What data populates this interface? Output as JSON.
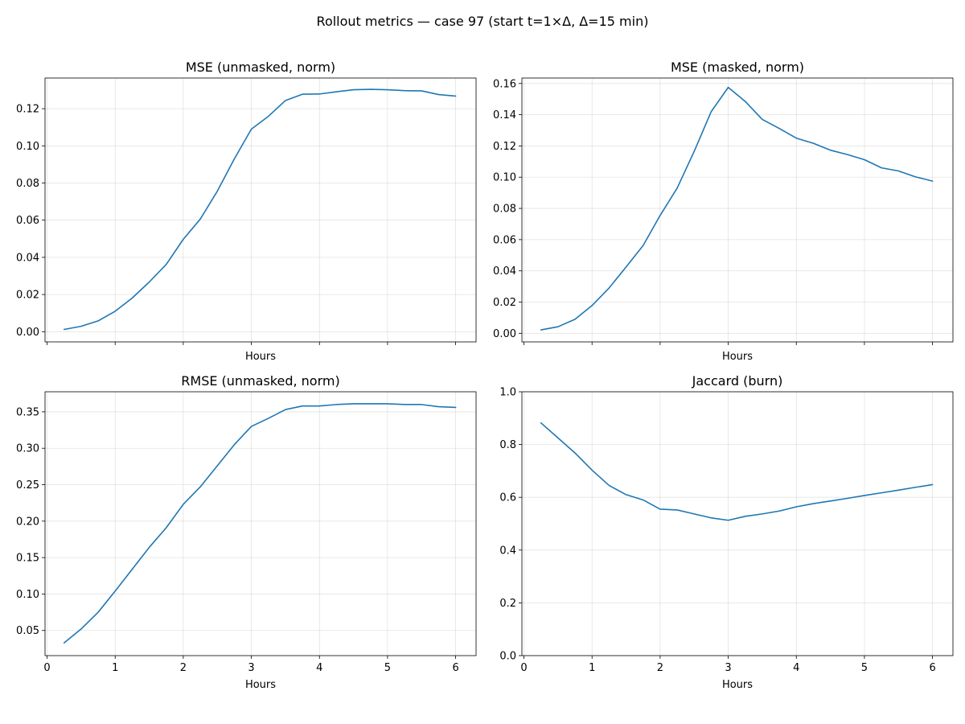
{
  "figure": {
    "suptitle": "Rollout metrics — case 97 (start t=1×Δ, Δ=15 min)"
  },
  "colors": {
    "series": "#1f77b4",
    "grid": "#b0b0b0"
  },
  "chart_data": [
    {
      "type": "line",
      "title": "MSE (unmasked, norm)",
      "xlabel": "Hours",
      "ylabel": "",
      "grid": true,
      "show_x_ticklabels": false,
      "xlim": [
        -0.03,
        6.3
      ],
      "ylim": [
        -0.0055,
        0.1365
      ],
      "xticks": [
        0,
        1,
        2,
        3,
        4,
        5,
        6
      ],
      "yticks": [
        0.0,
        0.02,
        0.04,
        0.06,
        0.08,
        0.1,
        0.12
      ],
      "ytick_labels": [
        "0.00",
        "0.02",
        "0.04",
        "0.06",
        "0.08",
        "0.10",
        "0.12"
      ],
      "x": [
        0.25,
        0.5,
        0.75,
        1.0,
        1.25,
        1.5,
        1.75,
        2.0,
        2.25,
        2.5,
        2.75,
        3.0,
        3.25,
        3.5,
        3.75,
        4.0,
        4.25,
        4.5,
        4.75,
        5.0,
        5.25,
        5.5,
        5.75,
        6.0
      ],
      "y": [
        0.0012,
        0.0029,
        0.0058,
        0.011,
        0.0181,
        0.0267,
        0.0362,
        0.0497,
        0.0606,
        0.0756,
        0.093,
        0.109,
        0.1159,
        0.1244,
        0.1278,
        0.1279,
        0.1291,
        0.1302,
        0.1304,
        0.1302,
        0.1297,
        0.1296,
        0.1276,
        0.1268
      ]
    },
    {
      "type": "line",
      "title": "MSE (masked, norm)",
      "xlabel": "Hours",
      "ylabel": "",
      "grid": true,
      "show_x_ticklabels": false,
      "xlim": [
        -0.03,
        6.3
      ],
      "ylim": [
        -0.0055,
        0.1635
      ],
      "xticks": [
        0,
        1,
        2,
        3,
        4,
        5,
        6
      ],
      "yticks": [
        0.0,
        0.02,
        0.04,
        0.06,
        0.08,
        0.1,
        0.12,
        0.14,
        0.16
      ],
      "ytick_labels": [
        "0.00",
        "0.02",
        "0.04",
        "0.06",
        "0.08",
        "0.10",
        "0.12",
        "0.14",
        "0.16"
      ],
      "x": [
        0.25,
        0.5,
        0.75,
        1.0,
        1.25,
        1.5,
        1.75,
        2.0,
        2.25,
        2.5,
        2.75,
        3.0,
        3.25,
        3.5,
        3.75,
        4.0,
        4.25,
        4.5,
        4.75,
        5.0,
        5.25,
        5.5,
        5.75,
        6.0
      ],
      "y": [
        0.0022,
        0.0042,
        0.009,
        0.0178,
        0.029,
        0.0425,
        0.0562,
        0.0755,
        0.093,
        0.1165,
        0.142,
        0.1575,
        0.1485,
        0.137,
        0.1312,
        0.125,
        0.1217,
        0.1173,
        0.1145,
        0.1112,
        0.106,
        0.104,
        0.1002,
        0.0975
      ]
    },
    {
      "type": "line",
      "title": "RMSE (unmasked, norm)",
      "xlabel": "Hours",
      "ylabel": "",
      "grid": true,
      "show_x_ticklabels": true,
      "xlim": [
        -0.03,
        6.3
      ],
      "ylim": [
        0.0155,
        0.3775
      ],
      "xticks": [
        0,
        1,
        2,
        3,
        4,
        5,
        6
      ],
      "xtick_labels": [
        "0",
        "1",
        "2",
        "3",
        "4",
        "5",
        "6"
      ],
      "yticks": [
        0.05,
        0.1,
        0.15,
        0.2,
        0.25,
        0.3,
        0.35
      ],
      "ytick_labels": [
        "0.05",
        "0.10",
        "0.15",
        "0.20",
        "0.25",
        "0.30",
        "0.35"
      ],
      "x": [
        0.25,
        0.5,
        0.75,
        1.0,
        1.25,
        1.5,
        1.75,
        2.0,
        2.25,
        2.5,
        2.75,
        3.0,
        3.25,
        3.5,
        3.75,
        4.0,
        4.25,
        4.5,
        4.75,
        5.0,
        5.25,
        5.5,
        5.75,
        6.0
      ],
      "y": [
        0.033,
        0.052,
        0.075,
        0.104,
        0.134,
        0.164,
        0.191,
        0.223,
        0.247,
        0.276,
        0.305,
        0.33,
        0.341,
        0.353,
        0.358,
        0.358,
        0.36,
        0.361,
        0.361,
        0.361,
        0.36,
        0.36,
        0.357,
        0.356
      ]
    },
    {
      "type": "line",
      "title": "Jaccard (burn)",
      "xlabel": "Hours",
      "ylabel": "",
      "grid": true,
      "show_x_ticklabels": true,
      "xlim": [
        -0.03,
        6.3
      ],
      "ylim": [
        0.0,
        1.0
      ],
      "xticks": [
        0,
        1,
        2,
        3,
        4,
        5,
        6
      ],
      "xtick_labels": [
        "0",
        "1",
        "2",
        "3",
        "4",
        "5",
        "6"
      ],
      "yticks": [
        0.0,
        0.2,
        0.4,
        0.6,
        0.8,
        1.0
      ],
      "ytick_labels": [
        "0.0",
        "0.2",
        "0.4",
        "0.6",
        "0.8",
        "1.0"
      ],
      "x": [
        0.25,
        0.5,
        0.75,
        1.0,
        1.25,
        1.5,
        1.75,
        2.0,
        2.25,
        2.5,
        2.75,
        3.0,
        3.25,
        3.5,
        3.75,
        4.0,
        4.25,
        4.5,
        4.75,
        5.0,
        5.25,
        5.5,
        5.75,
        6.0
      ],
      "y": [
        0.882,
        0.825,
        0.768,
        0.703,
        0.645,
        0.61,
        0.59,
        0.555,
        0.552,
        0.537,
        0.522,
        0.513,
        0.528,
        0.537,
        0.548,
        0.564,
        0.576,
        0.586,
        0.596,
        0.607,
        0.617,
        0.627,
        0.638,
        0.648
      ]
    }
  ]
}
